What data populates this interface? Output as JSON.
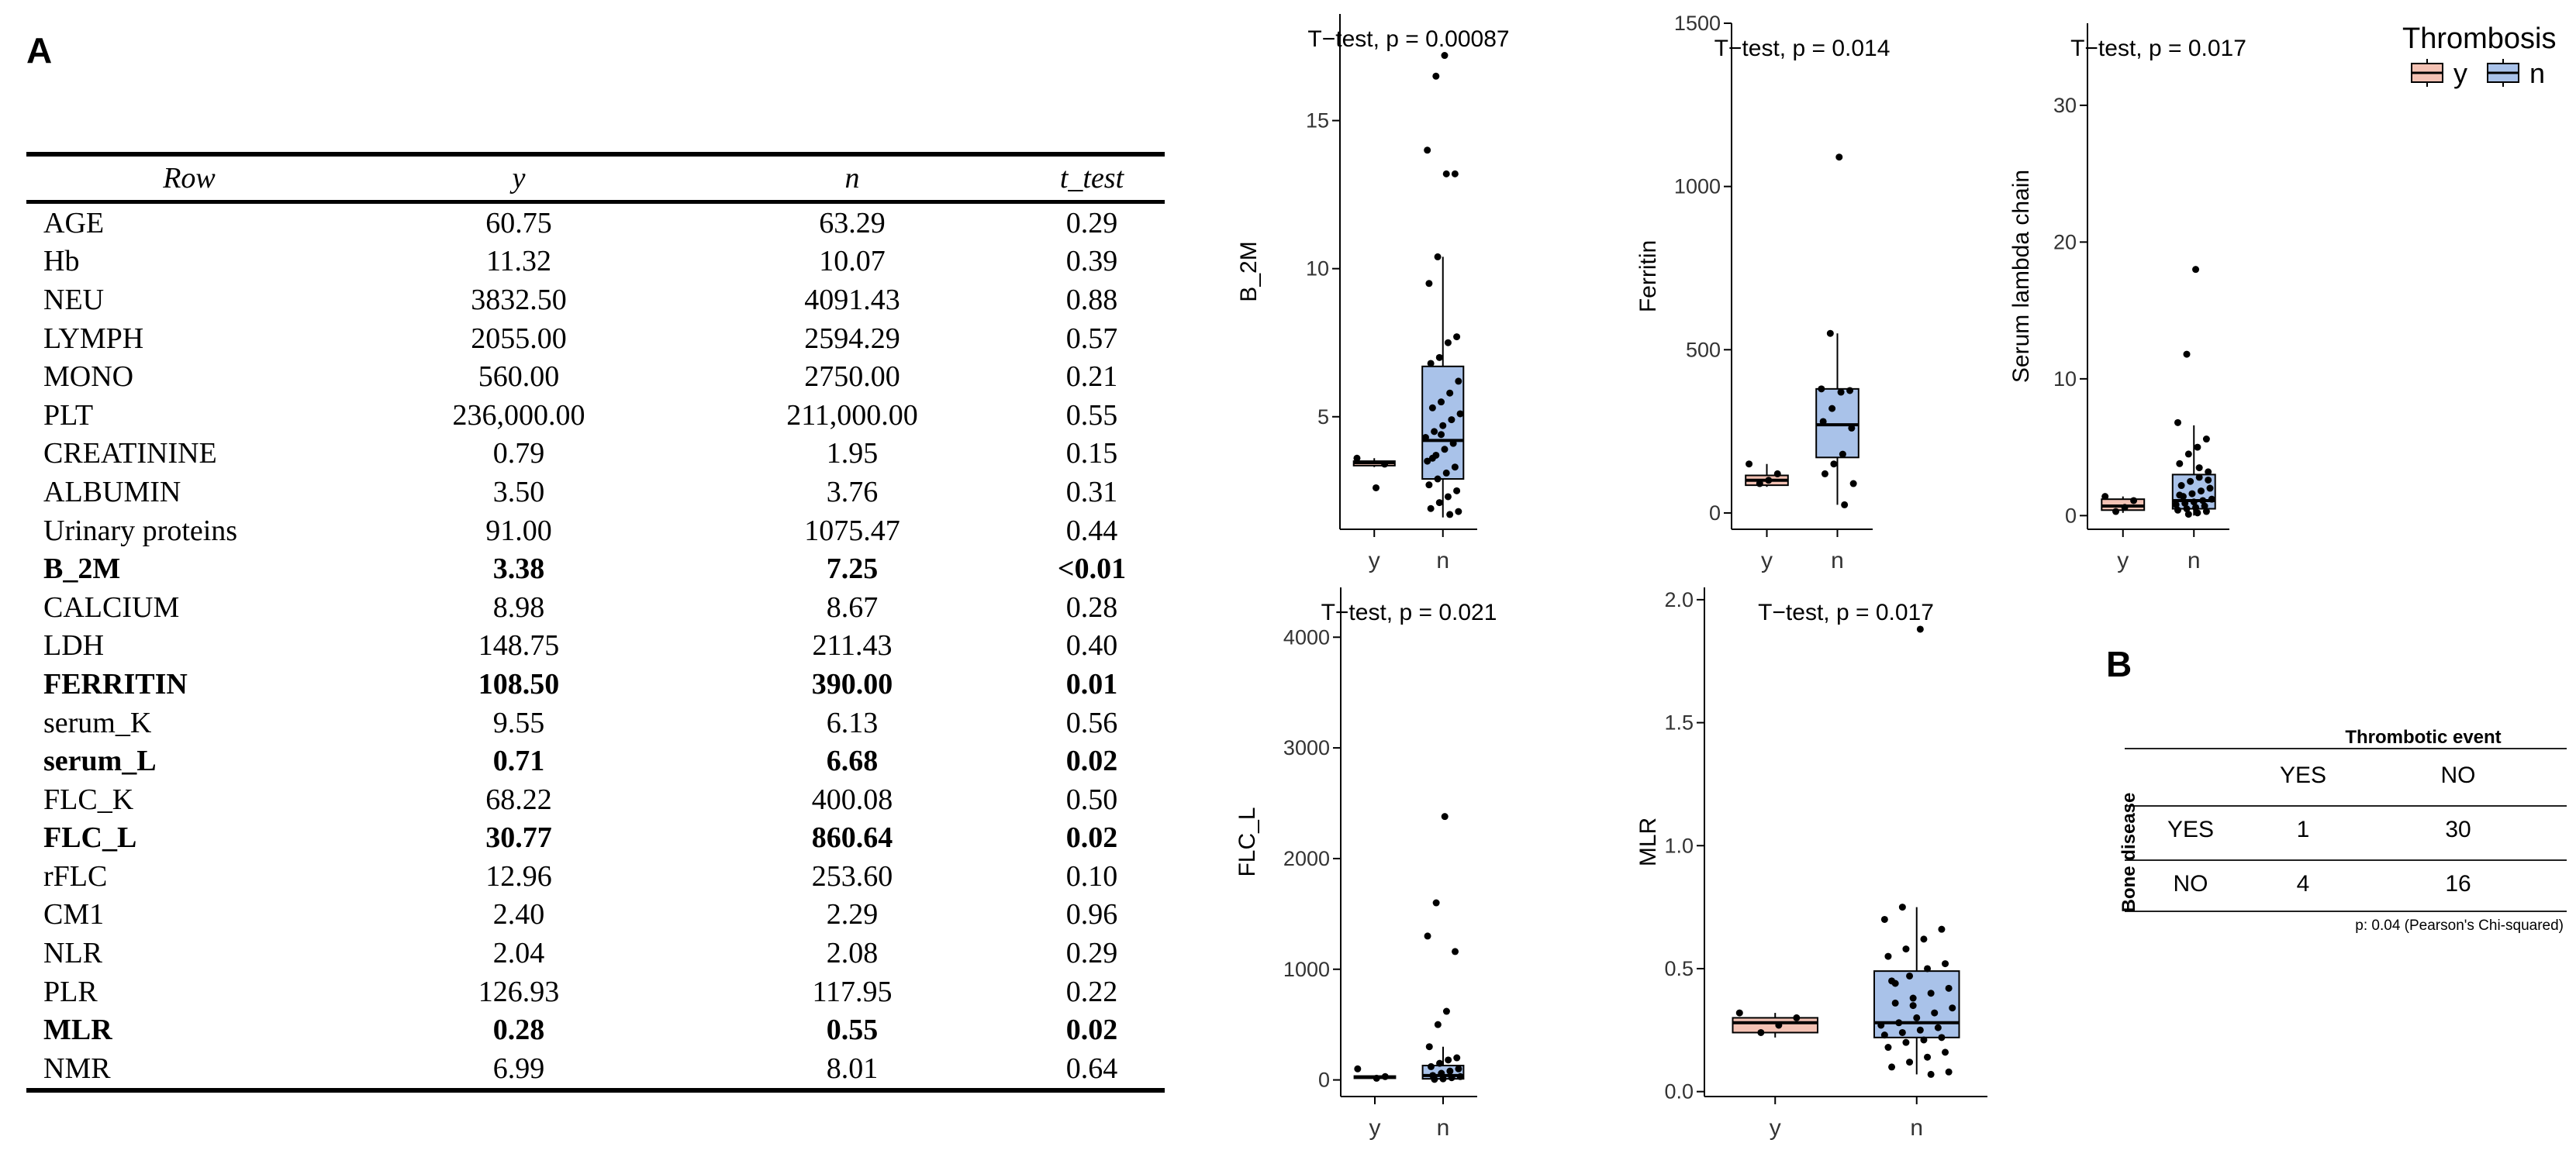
{
  "panel_a_label": "A",
  "panel_b_label": "B",
  "table_a": {
    "columns": [
      "Row",
      "y",
      "n",
      "t_test"
    ],
    "rows": [
      {
        "row": "AGE",
        "y": "60.75",
        "n": "63.29",
        "t_test": "0.29",
        "bold": false
      },
      {
        "row": "Hb",
        "y": "11.32",
        "n": "10.07",
        "t_test": "0.39",
        "bold": false
      },
      {
        "row": "NEU",
        "y": "3832.50",
        "n": "4091.43",
        "t_test": "0.88",
        "bold": false
      },
      {
        "row": "LYMPH",
        "y": "2055.00",
        "n": "2594.29",
        "t_test": "0.57",
        "bold": false
      },
      {
        "row": "MONO",
        "y": "560.00",
        "n": "2750.00",
        "t_test": "0.21",
        "bold": false
      },
      {
        "row": "PLT",
        "y": "236,000.00",
        "n": "211,000.00",
        "t_test": "0.55",
        "bold": false
      },
      {
        "row": "CREATININE",
        "y": "0.79",
        "n": "1.95",
        "t_test": "0.15",
        "bold": false
      },
      {
        "row": "ALBUMIN",
        "y": "3.50",
        "n": "3.76",
        "t_test": "0.31",
        "bold": false
      },
      {
        "row": "Urinary proteins",
        "y": "91.00",
        "n": "1075.47",
        "t_test": "0.44",
        "bold": false
      },
      {
        "row": "B_2M",
        "y": "3.38",
        "n": "7.25",
        "t_test": "<0.01",
        "bold": true
      },
      {
        "row": "CALCIUM",
        "y": "8.98",
        "n": "8.67",
        "t_test": "0.28",
        "bold": false
      },
      {
        "row": "LDH",
        "y": "148.75",
        "n": "211.43",
        "t_test": "0.40",
        "bold": false
      },
      {
        "row": "FERRITIN",
        "y": "108.50",
        "n": "390.00",
        "t_test": "0.01",
        "bold": true
      },
      {
        "row": "serum_K",
        "y": "9.55",
        "n": "6.13",
        "t_test": "0.56",
        "bold": false
      },
      {
        "row": "serum_L",
        "y": "0.71",
        "n": "6.68",
        "t_test": "0.02",
        "bold": true
      },
      {
        "row": "FLC_K",
        "y": "68.22",
        "n": "400.08",
        "t_test": "0.50",
        "bold": false
      },
      {
        "row": "FLC_L",
        "y": "30.77",
        "n": "860.64",
        "t_test": "0.02",
        "bold": true
      },
      {
        "row": "rFLC",
        "y": "12.96",
        "n": "253.60",
        "t_test": "0.10",
        "bold": false
      },
      {
        "row": "CM1",
        "y": "2.40",
        "n": "2.29",
        "t_test": "0.96",
        "bold": false
      },
      {
        "row": "NLR",
        "y": "2.04",
        "n": "2.08",
        "t_test": "0.29",
        "bold": false
      },
      {
        "row": "PLR",
        "y": "126.93",
        "n": "117.95",
        "t_test": "0.22",
        "bold": false
      },
      {
        "row": "MLR",
        "y": "0.28",
        "n": "0.55",
        "t_test": "0.02",
        "bold": true
      },
      {
        "row": "NMR",
        "y": "6.99",
        "n": "8.01",
        "t_test": "0.64",
        "bold": false
      }
    ]
  },
  "legend": {
    "title": "Thrombosis",
    "items": [
      {
        "label": "y",
        "color": "#F4C2B4"
      },
      {
        "label": "n",
        "color": "#A9C2E9"
      }
    ]
  },
  "chart_data": [
    {
      "type": "box",
      "id": "b2m",
      "title": "T−test, p = 0.00087",
      "xlabel": "",
      "ylabel": "B_2M",
      "categories": [
        "y",
        "n"
      ],
      "ylim": [
        1.2,
        18.6
      ],
      "yticks": [
        5,
        10,
        15
      ],
      "boxes": [
        {
          "name": "y",
          "q1": 3.35,
          "median": 3.45,
          "q3": 3.5,
          "whisker_low": 3.3,
          "whisker_high": 3.6,
          "color": "#F4C2B4"
        },
        {
          "name": "n",
          "q1": 2.9,
          "median": 4.2,
          "q3": 6.7,
          "whisker_low": 1.6,
          "whisker_high": 10.4,
          "color": "#A9C2E9"
        }
      ],
      "points": {
        "y": [
          3.6,
          3.4,
          2.6
        ],
        "n": [
          17.2,
          16.5,
          14.0,
          13.2,
          13.2,
          10.4,
          9.5,
          7.7,
          7.5,
          7.0,
          6.8,
          6.2,
          5.8,
          5.5,
          5.3,
          5.1,
          4.9,
          4.7,
          4.5,
          4.3,
          4.1,
          3.9,
          3.7,
          3.5,
          3.3,
          3.1,
          2.9,
          2.7,
          2.5,
          2.3,
          2.1,
          1.9,
          1.8,
          1.7,
          4.4,
          3.6
        ]
      }
    },
    {
      "type": "box",
      "id": "ferritin",
      "title": "T−test, p = 0.014",
      "xlabel": "",
      "ylabel": "Ferritin",
      "categories": [
        "y",
        "n"
      ],
      "ylim": [
        -50,
        1500
      ],
      "yticks": [
        0,
        500,
        1000,
        1500
      ],
      "boxes": [
        {
          "name": "y",
          "q1": 85,
          "median": 100,
          "q3": 115,
          "whisker_low": 80,
          "whisker_high": 150,
          "color": "#F4C2B4"
        },
        {
          "name": "n",
          "q1": 170,
          "median": 270,
          "q3": 380,
          "whisker_low": 25,
          "whisker_high": 550,
          "color": "#A9C2E9"
        }
      ],
      "points": {
        "y": [
          150,
          120,
          100,
          90
        ],
        "n": [
          1090,
          550,
          380,
          375,
          370,
          320,
          280,
          260,
          180,
          150,
          120,
          90,
          25
        ]
      }
    },
    {
      "type": "box",
      "id": "serum_l",
      "title": "T−test, p = 0.017",
      "xlabel": "",
      "ylabel": "Serum lambda chain",
      "categories": [
        "y",
        "n"
      ],
      "ylim": [
        -1,
        36
      ],
      "yticks": [
        0,
        10,
        20,
        30
      ],
      "boxes": [
        {
          "name": "y",
          "q1": 0.4,
          "median": 0.7,
          "q3": 1.2,
          "whisker_low": 0.2,
          "whisker_high": 1.4,
          "color": "#F4C2B4"
        },
        {
          "name": "n",
          "q1": 0.5,
          "median": 1.1,
          "q3": 3.0,
          "whisker_low": 0.0,
          "whisker_high": 6.6,
          "color": "#A9C2E9"
        }
      ],
      "points": {
        "y": [
          1.4,
          1.1,
          0.6,
          0.3
        ],
        "n": [
          18.0,
          11.8,
          6.8,
          5.6,
          5.0,
          4.5,
          3.8,
          3.2,
          2.8,
          2.5,
          2.2,
          2.0,
          1.8,
          1.6,
          1.4,
          1.2,
          1.1,
          1.0,
          0.9,
          0.8,
          0.7,
          0.6,
          0.5,
          0.4,
          0.3,
          0.2,
          0.1,
          1.5,
          2.6,
          3.5
        ]
      }
    },
    {
      "type": "box",
      "id": "flc_l",
      "title": "T−test, p = 0.021",
      "xlabel": "",
      "ylabel": "FLC_L",
      "categories": [
        "y",
        "n"
      ],
      "ylim": [
        -150,
        4450
      ],
      "yticks": [
        0,
        1000,
        2000,
        3000,
        4000
      ],
      "boxes": [
        {
          "name": "y",
          "q1": 15,
          "median": 25,
          "q3": 35,
          "whisker_low": 10,
          "whisker_high": 40,
          "color": "#F4C2B4"
        },
        {
          "name": "n",
          "q1": 10,
          "median": 40,
          "q3": 130,
          "whisker_low": 0,
          "whisker_high": 300,
          "color": "#A9C2E9"
        }
      ],
      "points": {
        "y": [
          100,
          30,
          15
        ],
        "n": [
          2380,
          1600,
          1300,
          1160,
          620,
          500,
          300,
          200,
          180,
          150,
          120,
          100,
          80,
          60,
          40,
          30,
          20,
          10,
          5
        ]
      }
    },
    {
      "type": "box",
      "id": "mlr",
      "title": "T−test, p = 0.017",
      "xlabel": "",
      "ylabel": "MLR",
      "categories": [
        "y",
        "n"
      ],
      "ylim": [
        -0.02,
        2.05
      ],
      "yticks": [
        0.0,
        0.5,
        1.0,
        1.5,
        2.0
      ],
      "ytick_labels": [
        "0.0",
        "0.5",
        "1.0",
        "1.5",
        "2.0"
      ],
      "boxes": [
        {
          "name": "y",
          "q1": 0.24,
          "median": 0.28,
          "q3": 0.3,
          "whisker_low": 0.22,
          "whisker_high": 0.32,
          "color": "#F4C2B4"
        },
        {
          "name": "n",
          "q1": 0.22,
          "median": 0.28,
          "q3": 0.49,
          "whisker_low": 0.07,
          "whisker_high": 0.75,
          "color": "#A9C2E9"
        }
      ],
      "points": {
        "y": [
          0.32,
          0.3,
          0.27,
          0.24
        ],
        "n": [
          1.88,
          0.75,
          0.7,
          0.66,
          0.62,
          0.58,
          0.55,
          0.52,
          0.5,
          0.47,
          0.45,
          0.42,
          0.4,
          0.38,
          0.36,
          0.34,
          0.32,
          0.3,
          0.28,
          0.27,
          0.26,
          0.25,
          0.24,
          0.23,
          0.22,
          0.21,
          0.2,
          0.18,
          0.16,
          0.14,
          0.12,
          0.1,
          0.08,
          0.07,
          0.35,
          0.44
        ]
      }
    }
  ],
  "table_b": {
    "header_group": "Thrombotic event",
    "col_headers": [
      "YES",
      "NO"
    ],
    "row_group": "Bone disease",
    "rows": [
      {
        "label": "YES",
        "values": [
          "1",
          "30"
        ]
      },
      {
        "label": "NO",
        "values": [
          "4",
          "16"
        ]
      }
    ],
    "footnote": "p: 0.04 (Pearson's Chi-squared)"
  }
}
